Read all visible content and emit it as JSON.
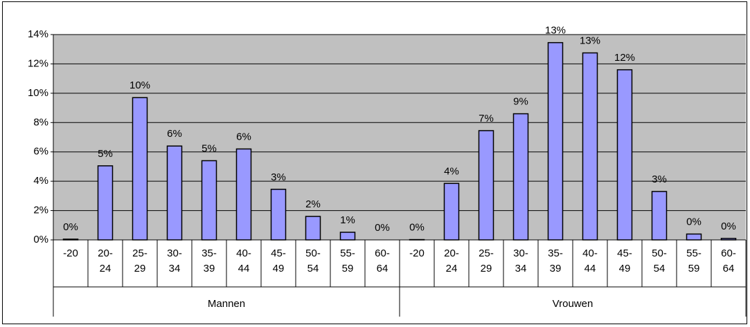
{
  "chart_data": {
    "type": "bar",
    "color": "#9999ff",
    "background": "#c0c0c0",
    "grid": true,
    "ylim": [
      0,
      14
    ],
    "yticks": [
      {
        "value": 0,
        "label": "0%"
      },
      {
        "value": 2,
        "label": "2%"
      },
      {
        "value": 4,
        "label": "4%"
      },
      {
        "value": 6,
        "label": "6%"
      },
      {
        "value": 8,
        "label": "8%"
      },
      {
        "value": 10,
        "label": "10%"
      },
      {
        "value": 12,
        "label": "12%"
      },
      {
        "value": 14,
        "label": "14%"
      }
    ],
    "groups": [
      {
        "name": "Mannen",
        "categories": [
          "-20",
          "20-\n24",
          "25-\n29",
          "30-\n34",
          "35-\n39",
          "40-\n44",
          "45-\n49",
          "50-\n54",
          "55-\n59",
          "60-\n64"
        ],
        "values": [
          0.05,
          5.05,
          9.7,
          6.4,
          5.4,
          6.2,
          3.45,
          1.6,
          0.52,
          0
        ],
        "value_labels": [
          "0%",
          "5%",
          "10%",
          "6%",
          "5%",
          "6%",
          "3%",
          "2%",
          "1%",
          "0%"
        ]
      },
      {
        "name": "Vrouwen",
        "categories": [
          "-20",
          "20-\n24",
          "25-\n29",
          "30-\n34",
          "35-\n39",
          "40-\n44",
          "45-\n49",
          "50-\n54",
          "55-\n59",
          "60-\n64"
        ],
        "values": [
          0.02,
          3.85,
          7.45,
          8.6,
          13.45,
          12.75,
          11.6,
          3.3,
          0.4,
          0.1
        ],
        "value_labels": [
          "0%",
          "4%",
          "7%",
          "9%",
          "13%",
          "13%",
          "12%",
          "3%",
          "0%",
          "0%"
        ]
      }
    ]
  }
}
